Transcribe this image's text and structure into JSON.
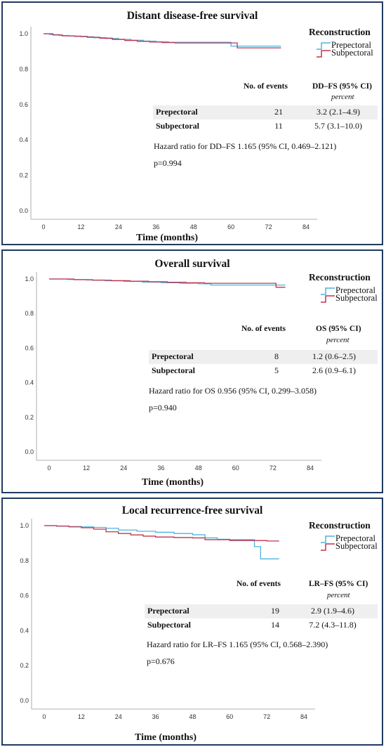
{
  "colors": {
    "prepectoral": "#4fb3e0",
    "subpectoral": "#c0334d",
    "frame": "#1f3a5f"
  },
  "panels": [
    {
      "title": "Distant disease-free survival",
      "legend_title": "Reconstruction",
      "legend": [
        "Prepectoral",
        "Subpectoral"
      ],
      "col_events": "No. of events",
      "col_measure": "DD–FS (95% CI)",
      "col_sub": "percent",
      "rows": [
        {
          "label": "Prepectoral",
          "events": "21",
          "pct": "3.2 (2.1–4.9)"
        },
        {
          "label": "Subpectoral",
          "events": "11",
          "pct": "5.7 (3.1–10.0)"
        }
      ],
      "hazard": "Hazard ratio for DD–FS 1.165 (95% CI, 0.469–2.121)",
      "pvalue": "p=0.994",
      "xlabel": "Time (months)"
    },
    {
      "title": "Overall survival",
      "legend_title": "Reconstruction",
      "legend": [
        "Prepectoral",
        "Subpectoral"
      ],
      "col_events": "No. of events",
      "col_measure": "OS (95% CI)",
      "col_sub": "percent",
      "rows": [
        {
          "label": "Prepectoral",
          "events": "8",
          "pct": "1.2 (0.6–2.5)"
        },
        {
          "label": "Subpectoral",
          "events": "5",
          "pct": "2.6 (0.9–6.1)"
        }
      ],
      "hazard": "Hazard ratio for OS 0.956 (95% CI, 0.299–3.058)",
      "pvalue": "p=0.940",
      "xlabel": "Time (months)"
    },
    {
      "title": "Local recurrence-free survival",
      "legend_title": "Reconstruction",
      "legend": [
        "Prepectoral",
        "Subpectoral"
      ],
      "col_events": "No. of events",
      "col_measure": "LR–FS (95% CI)",
      "col_sub": "percent",
      "rows": [
        {
          "label": "Prepectoral",
          "events": "19",
          "pct": "2.9 (1.9–4.6)"
        },
        {
          "label": "Subpectoral",
          "events": "14",
          "pct": "7.2 (4.3–11.8)"
        }
      ],
      "hazard": "Hazard ratio for LR–FS 1.165 (95% CI, 0.568–2.390)",
      "pvalue": "p=0.676",
      "xlabel": "Time (months)"
    }
  ],
  "chart_data": [
    {
      "type": "line",
      "title": "Distant disease-free survival",
      "xlabel": "Time (months)",
      "ylabel": "",
      "xlim": [
        0,
        84
      ],
      "ylim": [
        0,
        1.0
      ],
      "xticks": [
        "0",
        "12",
        "24",
        "36",
        "48",
        "60",
        "72",
        "84"
      ],
      "yticks": [
        "0.0",
        "0.2",
        "0.4",
        "0.6",
        "0.8",
        "1.0"
      ],
      "series": [
        {
          "name": "Prepectoral",
          "x": [
            0,
            2,
            5,
            8,
            12,
            16,
            20,
            24,
            28,
            32,
            36,
            40,
            48,
            52,
            56,
            60,
            64,
            72,
            76
          ],
          "y": [
            1.0,
            0.995,
            0.99,
            0.987,
            0.983,
            0.978,
            0.973,
            0.968,
            0.963,
            0.958,
            0.955,
            0.952,
            0.952,
            0.952,
            0.952,
            0.93,
            0.93,
            0.93,
            0.93
          ]
        },
        {
          "name": "Subpectoral",
          "x": [
            0,
            3,
            6,
            10,
            14,
            18,
            22,
            26,
            30,
            34,
            38,
            42,
            48,
            55,
            62,
            64,
            72,
            76
          ],
          "y": [
            1.0,
            0.993,
            0.988,
            0.985,
            0.98,
            0.975,
            0.968,
            0.962,
            0.957,
            0.953,
            0.95,
            0.948,
            0.948,
            0.948,
            0.92,
            0.92,
            0.92,
            0.92
          ]
        }
      ]
    },
    {
      "type": "line",
      "title": "Overall survival",
      "xlabel": "Time (months)",
      "ylabel": "",
      "xlim": [
        0,
        84
      ],
      "ylim": [
        0,
        1.0
      ],
      "xticks": [
        "0",
        "12",
        "24",
        "36",
        "48",
        "60",
        "72",
        "84"
      ],
      "yticks": [
        "0.0",
        "0.2",
        "0.4",
        "0.6",
        "0.8",
        "1.0"
      ],
      "series": [
        {
          "name": "Prepectoral",
          "x": [
            0,
            6,
            12,
            18,
            24,
            30,
            36,
            42,
            48,
            52,
            60,
            72,
            76
          ],
          "y": [
            1.0,
            0.997,
            0.994,
            0.99,
            0.986,
            0.982,
            0.978,
            0.975,
            0.972,
            0.965,
            0.965,
            0.965,
            0.965
          ]
        },
        {
          "name": "Subpectoral",
          "x": [
            0,
            8,
            14,
            20,
            26,
            32,
            38,
            44,
            50,
            60,
            72,
            73,
            76
          ],
          "y": [
            1.0,
            0.996,
            0.993,
            0.99,
            0.987,
            0.984,
            0.981,
            0.978,
            0.975,
            0.975,
            0.975,
            0.952,
            0.952
          ]
        }
      ]
    },
    {
      "type": "line",
      "title": "Local recurrence-free survival",
      "xlabel": "Time (months)",
      "ylabel": "",
      "xlim": [
        0,
        84
      ],
      "ylim": [
        0,
        1.0
      ],
      "xticks": [
        "0",
        "12",
        "24",
        "36",
        "48",
        "60",
        "72",
        "84"
      ],
      "yticks": [
        "0.0",
        "0.2",
        "0.4",
        "0.6",
        "0.8",
        "1.0"
      ],
      "series": [
        {
          "name": "Prepectoral",
          "x": [
            0,
            4,
            8,
            12,
            16,
            20,
            24,
            30,
            36,
            42,
            48,
            52,
            56,
            60,
            66,
            68,
            70,
            76
          ],
          "y": [
            1.0,
            0.998,
            0.995,
            0.993,
            0.99,
            0.985,
            0.975,
            0.968,
            0.962,
            0.955,
            0.948,
            0.93,
            0.922,
            0.92,
            0.92,
            0.88,
            0.81,
            0.81
          ]
        },
        {
          "name": "Subpectoral",
          "x": [
            0,
            4,
            8,
            12,
            16,
            20,
            24,
            28,
            32,
            36,
            42,
            48,
            52,
            60,
            72,
            76
          ],
          "y": [
            1.0,
            0.997,
            0.993,
            0.988,
            0.98,
            0.965,
            0.955,
            0.947,
            0.94,
            0.935,
            0.932,
            0.93,
            0.92,
            0.915,
            0.912,
            0.912
          ]
        }
      ]
    }
  ]
}
